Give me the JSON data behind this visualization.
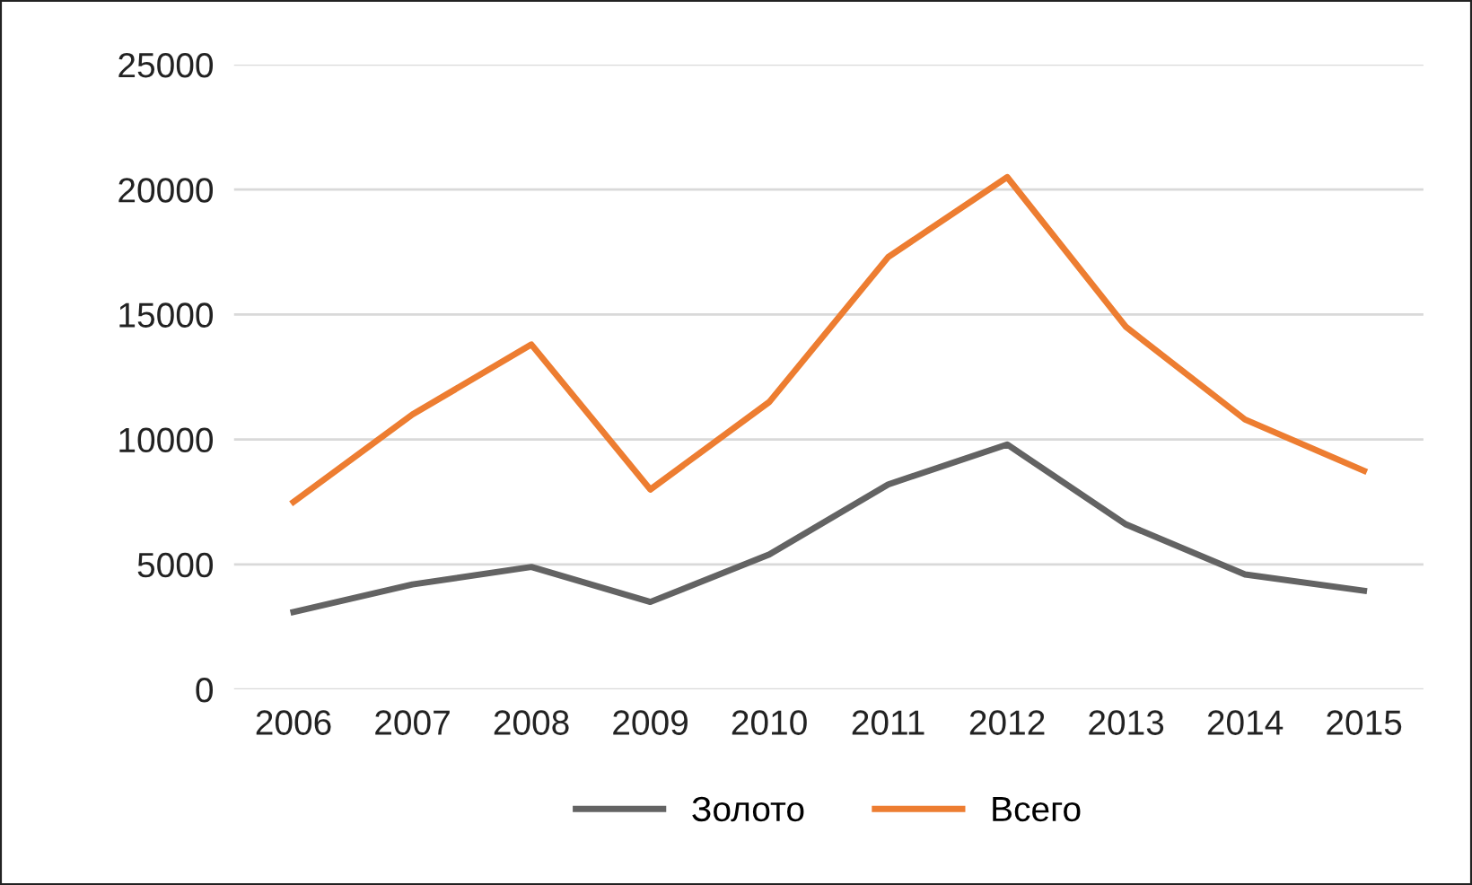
{
  "chart_data": {
    "type": "line",
    "categories": [
      "2006",
      "2007",
      "2008",
      "2009",
      "2010",
      "2011",
      "2012",
      "2013",
      "2014",
      "2015"
    ],
    "series": [
      {
        "name": "Золото",
        "color": "#636363",
        "values": [
          3100,
          4200,
          4900,
          3500,
          5400,
          8200,
          9800,
          6600,
          4600,
          3950
        ]
      },
      {
        "name": "Всего",
        "color": "#ed7d31",
        "values": [
          7500,
          11000,
          13800,
          8000,
          11500,
          17300,
          20500,
          14500,
          10800,
          8750
        ]
      }
    ],
    "ylim": [
      0,
      25000
    ],
    "yticks": [
      0,
      5000,
      10000,
      15000,
      20000,
      25000
    ],
    "grid": "y",
    "legend": "bottom",
    "marker": "none",
    "line_style": "solid"
  }
}
